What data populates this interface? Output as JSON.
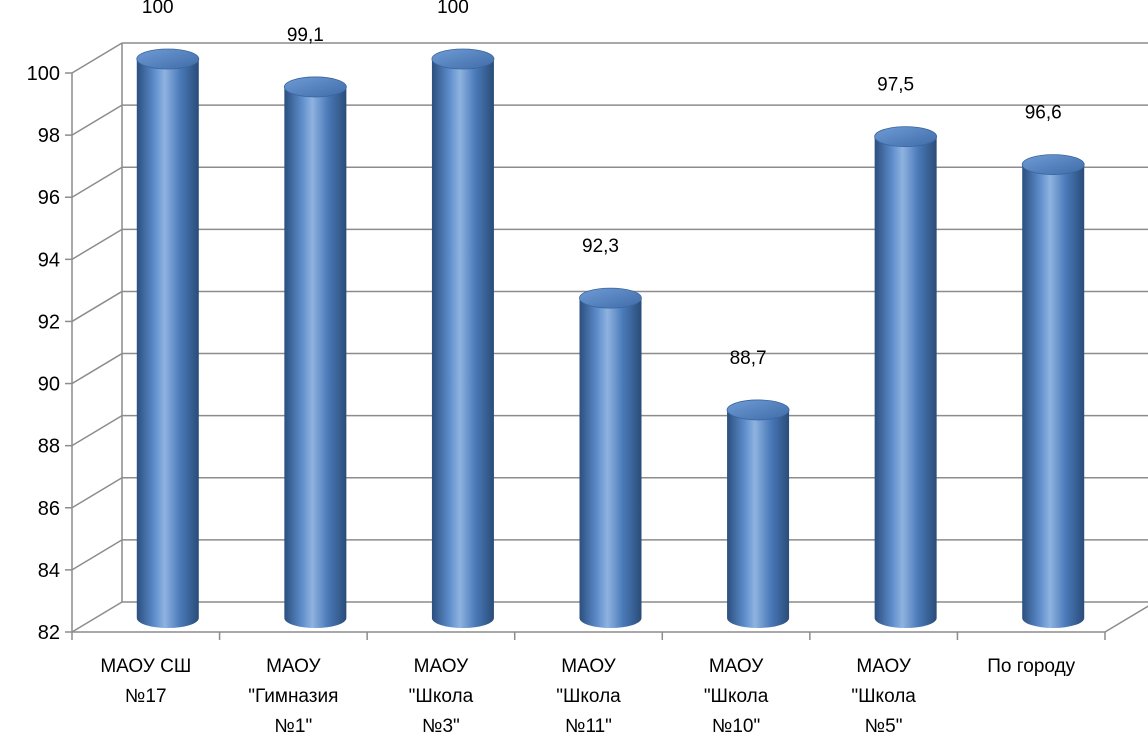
{
  "chart_data": {
    "type": "bar",
    "style": "3d-cylinder",
    "categories": [
      [
        "МАОУ СШ",
        "№17"
      ],
      [
        "МАОУ",
        "\"Гимназия",
        "№1\""
      ],
      [
        "МАОУ",
        "\"Школа",
        "№3\""
      ],
      [
        "МАОУ",
        "\"Школа",
        "№11\""
      ],
      [
        "МАОУ",
        "\"Школа",
        "№10\""
      ],
      [
        "МАОУ",
        "\"Школа",
        "№5\""
      ],
      [
        "По городу"
      ]
    ],
    "values": [
      100,
      99.1,
      100,
      92.3,
      88.7,
      97.5,
      96.6
    ],
    "data_labels": [
      "100",
      "99,1",
      "100",
      "92,3",
      "88,7",
      "97,5",
      "96,6"
    ],
    "y_ticks": [
      "82",
      "84",
      "86",
      "88",
      "90",
      "92",
      "94",
      "96",
      "98",
      "100"
    ],
    "ylim": [
      82,
      100
    ],
    "grid": true,
    "colors": {
      "bar": "#4f81bd",
      "bar_dark": "#2b4f7e",
      "bar_light": "#8fb3e0",
      "grid": "#8c8c8c"
    }
  }
}
